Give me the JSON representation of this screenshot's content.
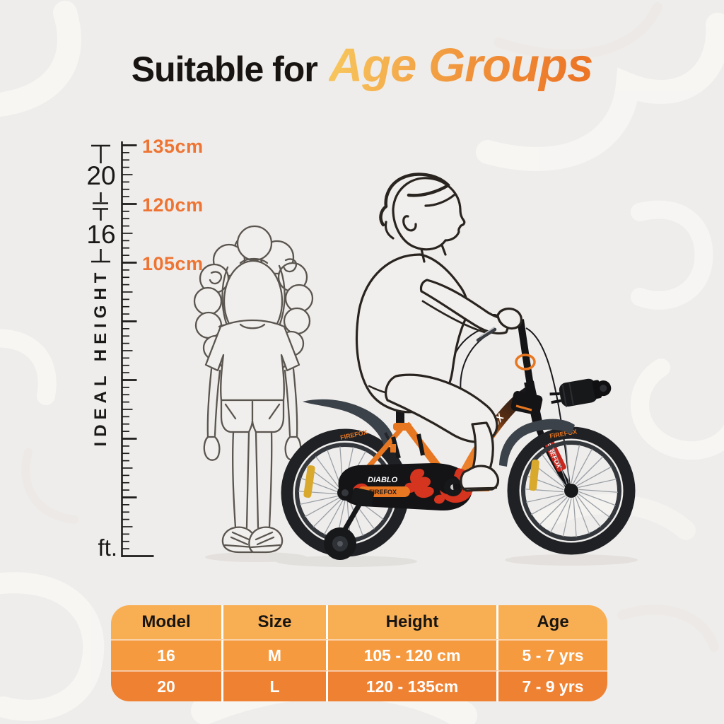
{
  "title": {
    "prefix": "Suitable for",
    "accent": "Age Groups"
  },
  "height_scale": {
    "axis_label": "IDEAL HEIGHT",
    "unit_label": "ft.",
    "wheel_size_markers": [
      {
        "label": "20"
      },
      {
        "label": "16"
      }
    ],
    "height_marks": [
      {
        "label": "135cm"
      },
      {
        "label": "120cm"
      },
      {
        "label": "105cm"
      }
    ]
  },
  "bike": {
    "brand": "FIREFOX",
    "model": "DIABLO"
  },
  "table": {
    "headers": [
      "Model",
      "Size",
      "Height",
      "Age"
    ],
    "rows": [
      [
        "16",
        "M",
        "105 - 120 cm",
        "5 - 7 yrs"
      ],
      [
        "20",
        "L",
        "120 - 135cm",
        "7 - 9 yrs"
      ]
    ]
  },
  "colors": {
    "background": "#efedeb",
    "accent_gradient_start": "#f7c35b",
    "accent_gradient_end": "#ec7526",
    "height_mark_orange": "#ee7433",
    "table_header_bg": "#f8af54",
    "table_row1_bg": "#f69a40",
    "table_row2_bg": "#ef8132",
    "bike_orange": "#e87722",
    "flame_red": "#d5341f",
    "reflector_yellow": "#d9a92e"
  }
}
